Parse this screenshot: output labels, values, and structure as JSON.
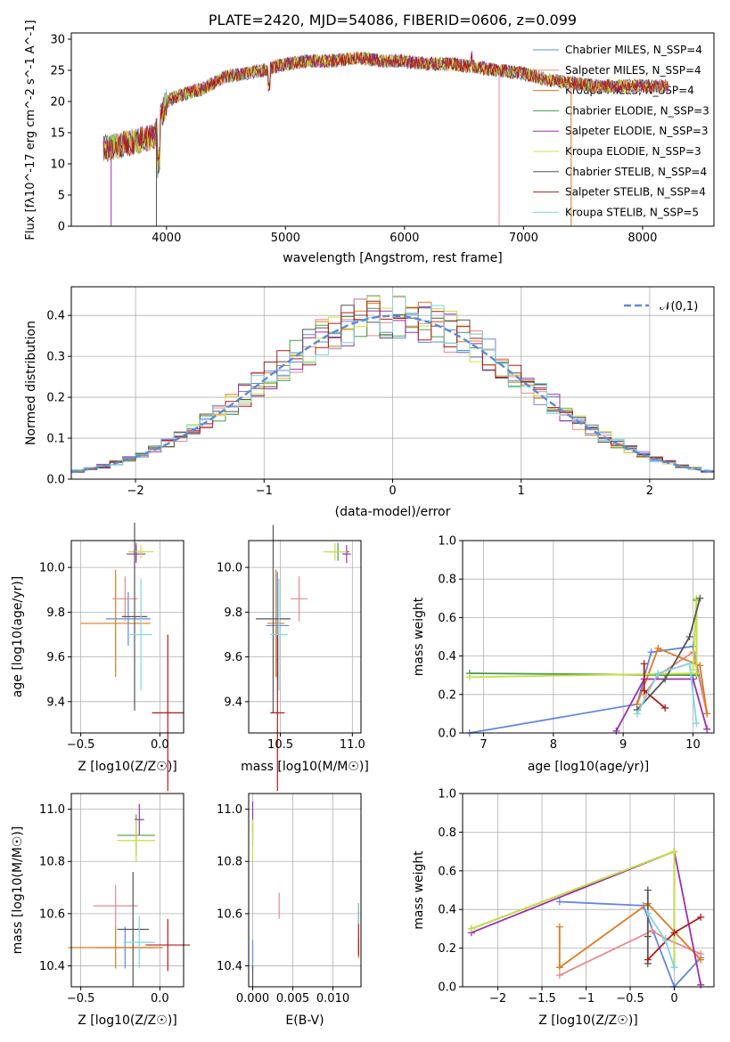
{
  "colors": {
    "chabrier_miles": "#6488dd",
    "salpeter_miles": "#e8888c",
    "kroupa_miles": "#e07a1f",
    "chabrier_elodie": "#4a9a4a",
    "salpeter_elodie": "#9b2fb0",
    "kroupa_elodie": "#c8e040",
    "chabrier_stelib": "#555555",
    "salpeter_stelib": "#b01a1a",
    "kroupa_stelib": "#7fd6dc",
    "normal": "#5b8bd8"
  },
  "chart_data": [
    {
      "type": "line",
      "title": "PLATE=2420, MJD=54086, FIBERID=0606, z=0.099",
      "xlabel": "wavelength [Angstrom, rest frame]",
      "ylabel": "Flux [fλ10^-17 erg cm^-2 s^-1 A^-1]",
      "xlim": [
        3200,
        8600
      ],
      "ylim": [
        0,
        31
      ],
      "xticks": [
        4000,
        5000,
        6000,
        7000,
        8000
      ],
      "yticks": [
        0,
        5,
        10,
        15,
        20,
        25,
        30
      ],
      "grid": false,
      "legend_position": "upper-right",
      "legend": [
        "Chabrier MILES, N_SSP=4",
        "Salpeter MILES, N_SSP=4",
        "Kroupa MILES, N_SSP=4",
        "Chabrier ELODIE, N_SSP=3",
        "Salpeter ELODIE, N_SSP=3",
        "Kroupa ELODIE, N_SSP=3",
        "Chabrier STELIB, N_SSP=4",
        "Salpeter STELIB, N_SSP=4",
        "Kroupa STELIB, N_SSP=5"
      ],
      "continuum_wavelength": [
        3500,
        3700,
        3900,
        4000,
        4100,
        4300,
        4500,
        4800,
        5000,
        5200,
        5400,
        5600,
        5800,
        6000,
        6200,
        6400,
        6600,
        6800,
        7000,
        7200,
        7400,
        7600,
        7800,
        8000,
        8200
      ],
      "continuum_flux": [
        12.5,
        13.5,
        14.5,
        20,
        21,
        22,
        24,
        25,
        26,
        26.5,
        26.5,
        27,
        26.5,
        26.5,
        26,
        26,
        25.5,
        25,
        24.5,
        23.5,
        23,
        22.5,
        22.5,
        22.5,
        22.5
      ]
    },
    {
      "type": "bar",
      "xlabel": "(data-model)/error",
      "ylabel": "Normed distribution",
      "xlim": [
        -2.5,
        2.5
      ],
      "ylim": [
        0,
        0.47
      ],
      "xticks": [
        -2,
        -1,
        0,
        1,
        2
      ],
      "yticks": [
        0.0,
        0.1,
        0.2,
        0.3,
        0.4
      ],
      "grid": true,
      "legend_position": "upper-right",
      "legend": [
        "𝒩(0,1)"
      ],
      "bin_width": 0.1,
      "model_shape": "gaussian",
      "mu": 0.0,
      "sigma": 1.0,
      "histogram_peak_range": [
        0.39,
        0.46
      ]
    },
    {
      "type": "scatter",
      "xlabel": "Z [log10(Z/Z☉)]",
      "ylabel": "age  [log10(age/yr)]",
      "xlim": [
        -0.56,
        0.15
      ],
      "ylim": [
        9.26,
        10.12
      ],
      "xticks": [
        -0.5,
        0.0
      ],
      "yticks": [
        9.4,
        9.6,
        9.8,
        10.0
      ],
      "grid": true,
      "points": [
        {
          "x": -0.2,
          "y": 9.77,
          "xerr": 0.14,
          "yerr": 0.12
        },
        {
          "x": -0.22,
          "y": 9.86,
          "xerr": 0.08,
          "yerr": 0.1
        },
        {
          "x": -0.28,
          "y": 9.75,
          "xerr": 0.22,
          "yerr": 0.24
        },
        {
          "x": -0.15,
          "y": 10.07,
          "xerr": 0.04,
          "yerr": 0.04
        },
        {
          "x": -0.15,
          "y": 10.06,
          "xerr": 0.06,
          "yerr": 0.04
        },
        {
          "x": -0.12,
          "y": 10.07,
          "xerr": 0.08,
          "yerr": 0.03
        },
        {
          "x": -0.16,
          "y": 9.78,
          "xerr": 0.08,
          "yerr": 0.42
        },
        {
          "x": 0.05,
          "y": 9.35,
          "xerr": 0.1,
          "yerr": 0.35
        },
        {
          "x": -0.12,
          "y": 9.7,
          "xerr": 0.07,
          "yerr": 0.25
        }
      ]
    },
    {
      "type": "scatter",
      "xlabel": "mass [log10(M/M☉)]",
      "ylabel": "",
      "xlim": [
        10.28,
        11.06
      ],
      "ylim": [
        9.26,
        10.12
      ],
      "xticks": [
        10.5,
        11.0
      ],
      "yticks": [
        9.4,
        9.6,
        9.8,
        10.0
      ],
      "grid": true,
      "points": [
        {
          "x": 10.48,
          "y": 9.74,
          "xerr": 0.08,
          "yerr": 0.24
        },
        {
          "x": 10.63,
          "y": 9.86,
          "xerr": 0.06,
          "yerr": 0.1
        },
        {
          "x": 10.47,
          "y": 9.75,
          "xerr": 0.06,
          "yerr": 0.24
        },
        {
          "x": 10.9,
          "y": 10.07,
          "xerr": 0.08,
          "yerr": 0.04
        },
        {
          "x": 10.96,
          "y": 10.06,
          "xerr": 0.03,
          "yerr": 0.04
        },
        {
          "x": 10.88,
          "y": 10.07,
          "xerr": 0.08,
          "yerr": 0.04
        },
        {
          "x": 10.45,
          "y": 9.77,
          "xerr": 0.12,
          "yerr": 0.42
        },
        {
          "x": 10.48,
          "y": 9.35,
          "xerr": 0.05,
          "yerr": 0.35
        },
        {
          "x": 10.49,
          "y": 9.7,
          "xerr": 0.06,
          "yerr": 0.25
        }
      ]
    },
    {
      "type": "line",
      "xlabel": "age  [log10(age/yr)]",
      "ylabel": "mass weight",
      "xlim": [
        6.7,
        10.3
      ],
      "ylim": [
        0.0,
        1.0
      ],
      "xticks": [
        7,
        8,
        9,
        10
      ],
      "yticks": [
        0.0,
        0.2,
        0.4,
        0.6,
        0.8,
        1.0
      ],
      "grid": true,
      "series": [
        {
          "x": [
            6.8,
            9.2,
            9.4,
            10.0,
            10.2
          ],
          "y": [
            0.0,
            0.15,
            0.42,
            0.45,
            0.1
          ]
        },
        {
          "x": [
            9.3,
            9.5,
            10.0,
            10.2
          ],
          "y": [
            0.2,
            0.3,
            0.42,
            0.1
          ]
        },
        {
          "x": [
            9.2,
            9.5,
            10.1,
            10.2
          ],
          "y": [
            0.15,
            0.44,
            0.35,
            0.1
          ]
        },
        {
          "x": [
            6.8,
            10.05,
            10.05
          ],
          "y": [
            0.31,
            0.3,
            0.69
          ]
        },
        {
          "x": [
            8.9,
            9.3,
            10.0,
            10.2
          ],
          "y": [
            0.01,
            0.28,
            0.28,
            0.02
          ]
        },
        {
          "x": [
            6.8,
            10.05,
            10.05,
            10.0
          ],
          "y": [
            0.29,
            0.31,
            0.7,
            0.33
          ]
        },
        {
          "x": [
            9.2,
            9.6,
            9.95,
            10.1
          ],
          "y": [
            0.12,
            0.28,
            0.5,
            0.7
          ]
        },
        {
          "x": [
            9.3,
            9.3,
            9.6
          ],
          "y": [
            0.36,
            0.22,
            0.13
          ]
        },
        {
          "x": [
            9.2,
            9.5,
            9.95,
            10.05
          ],
          "y": [
            0.1,
            0.31,
            0.36,
            0.05
          ]
        }
      ]
    },
    {
      "type": "scatter",
      "xlabel": "Z [log10(Z/Z☉)]",
      "ylabel": "mass [log10(M/M☉)]",
      "xlim": [
        -0.56,
        0.15
      ],
      "ylim": [
        10.32,
        11.06
      ],
      "xticks": [
        -0.5,
        0.0
      ],
      "yticks": [
        10.4,
        10.6,
        10.8,
        11.0
      ],
      "grid": true,
      "points": [
        {
          "x": -0.22,
          "y": 10.47,
          "xerr": 0.18,
          "yerr": 0.08
        },
        {
          "x": -0.28,
          "y": 10.63,
          "xerr": 0.14,
          "yerr": 0.08
        },
        {
          "x": -0.28,
          "y": 10.47,
          "xerr": 0.3,
          "yerr": 0.08
        },
        {
          "x": -0.15,
          "y": 10.9,
          "xerr": 0.12,
          "yerr": 0.08
        },
        {
          "x": -0.13,
          "y": 10.96,
          "xerr": 0.03,
          "yerr": 0.06
        },
        {
          "x": -0.15,
          "y": 10.88,
          "xerr": 0.12,
          "yerr": 0.08
        },
        {
          "x": -0.17,
          "y": 10.54,
          "xerr": 0.1,
          "yerr": 0.22
        },
        {
          "x": 0.05,
          "y": 10.48,
          "xerr": 0.14,
          "yerr": 0.1
        },
        {
          "x": -0.13,
          "y": 10.49,
          "xerr": 0.1,
          "yerr": 0.1
        }
      ]
    },
    {
      "type": "scatter",
      "xlabel": "E(B-V)",
      "ylabel": "",
      "xlim": [
        -0.0005,
        0.0135
      ],
      "ylim": [
        10.32,
        11.06
      ],
      "xticks": [
        0.0,
        0.005,
        0.01
      ],
      "yticks": [
        10.4,
        10.6,
        10.8,
        11.0
      ],
      "grid": true,
      "points": [
        {
          "x": 0.0,
          "y": 10.44,
          "xerr": 0,
          "yerr": 0.06
        },
        {
          "x": 0.0033,
          "y": 10.63,
          "xerr": 0,
          "yerr": 0.05
        },
        {
          "x": 0.0132,
          "y": 10.47,
          "xerr": 0,
          "yerr": 0.04
        },
        {
          "x": 0.0,
          "y": 10.9,
          "xerr": 0,
          "yerr": 0.04
        },
        {
          "x": 0.0,
          "y": 10.97,
          "xerr": 0,
          "yerr": 0.06
        },
        {
          "x": 0.0,
          "y": 10.88,
          "xerr": 0,
          "yerr": 0.08
        },
        {
          "x": 0.0,
          "y": 10.36,
          "xerr": 0,
          "yerr": 0.04
        },
        {
          "x": 0.0132,
          "y": 10.54,
          "xerr": 0,
          "yerr": 0.1
        },
        {
          "x": 0.0132,
          "y": 10.6,
          "xerr": 0,
          "yerr": 0.04
        }
      ]
    },
    {
      "type": "line",
      "xlabel": "Z [log10(Z/Z☉)]",
      "ylabel": "mass weight",
      "xlim": [
        -2.4,
        0.45
      ],
      "ylim": [
        0.0,
        1.0
      ],
      "xticks": [
        -2.0,
        -1.5,
        -1.0,
        -0.5,
        0.0
      ],
      "yticks": [
        0.0,
        0.2,
        0.4,
        0.6,
        0.8,
        1.0
      ],
      "grid": true,
      "series": [
        {
          "x": [
            -1.3,
            -0.35,
            0.0,
            0.3
          ],
          "y": [
            0.44,
            0.42,
            0.0,
            0.15
          ]
        },
        {
          "x": [
            -1.3,
            -0.25,
            -0.1,
            0.3
          ],
          "y": [
            0.06,
            0.29,
            0.25,
            0.17
          ]
        },
        {
          "x": [
            -1.3,
            -1.3,
            -0.3,
            0.3
          ],
          "y": [
            0.31,
            0.1,
            0.43,
            0.14
          ]
        },
        {
          "x": [
            -2.3,
            0.0,
            0.0
          ],
          "y": [
            0.3,
            0.7,
            0.1
          ]
        },
        {
          "x": [
            -2.3,
            0.0,
            0.3
          ],
          "y": [
            0.28,
            0.7,
            0.01
          ]
        },
        {
          "x": [
            -2.3,
            0.0,
            0.0
          ],
          "y": [
            0.3,
            0.7,
            0.1
          ]
        },
        {
          "x": [
            -0.3,
            -0.3,
            -0.3
          ],
          "y": [
            0.5,
            0.12,
            0.26
          ]
        },
        {
          "x": [
            -0.3,
            0.0,
            0.3
          ],
          "y": [
            0.14,
            0.28,
            0.36
          ]
        },
        {
          "x": [
            -0.3,
            -0.1,
            0.0
          ],
          "y": [
            0.38,
            0.24,
            0.1
          ]
        }
      ]
    }
  ]
}
